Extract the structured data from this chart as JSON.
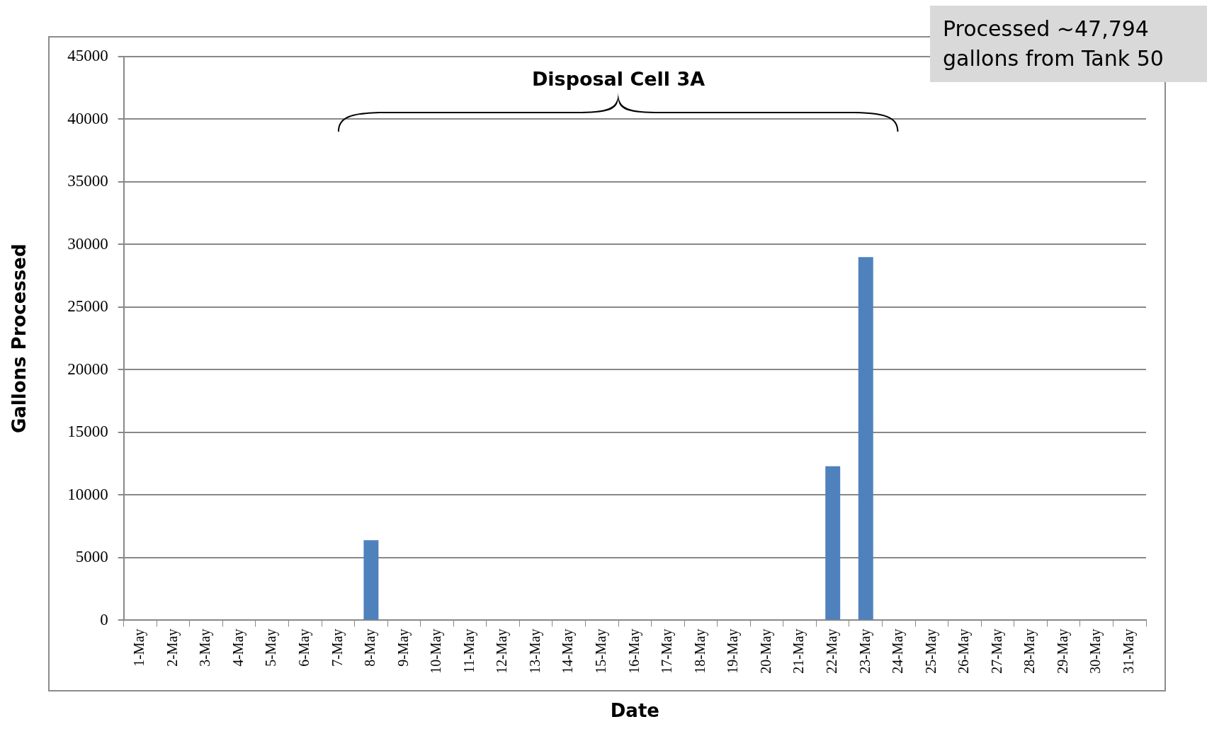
{
  "chart_data": {
    "type": "bar",
    "xlabel": "Date",
    "ylabel": "Gallons Processed",
    "categories": [
      "1-May",
      "2-May",
      "3-May",
      "4-May",
      "5-May",
      "6-May",
      "7-May",
      "8-May",
      "9-May",
      "10-May",
      "11-May",
      "12-May",
      "13-May",
      "14-May",
      "15-May",
      "16-May",
      "17-May",
      "18-May",
      "19-May",
      "20-May",
      "21-May",
      "22-May",
      "23-May",
      "24-May",
      "25-May",
      "26-May",
      "27-May",
      "28-May",
      "29-May",
      "30-May",
      "31-May"
    ],
    "values": [
      0,
      0,
      0,
      0,
      0,
      0,
      0,
      6400,
      0,
      0,
      0,
      0,
      0,
      0,
      0,
      0,
      0,
      0,
      0,
      0,
      0,
      12300,
      29000,
      0,
      0,
      0,
      0,
      0,
      0,
      0,
      0
    ],
    "color": "#4f81bd",
    "ylim": [
      0,
      45000
    ],
    "yticks": [
      0,
      5000,
      10000,
      15000,
      20000,
      25000,
      30000,
      35000,
      40000,
      45000
    ],
    "grid": "y",
    "annotations": [
      "Disposal Cell 3A",
      "Processed ~47,794 gallons from Tank 50"
    ]
  }
}
